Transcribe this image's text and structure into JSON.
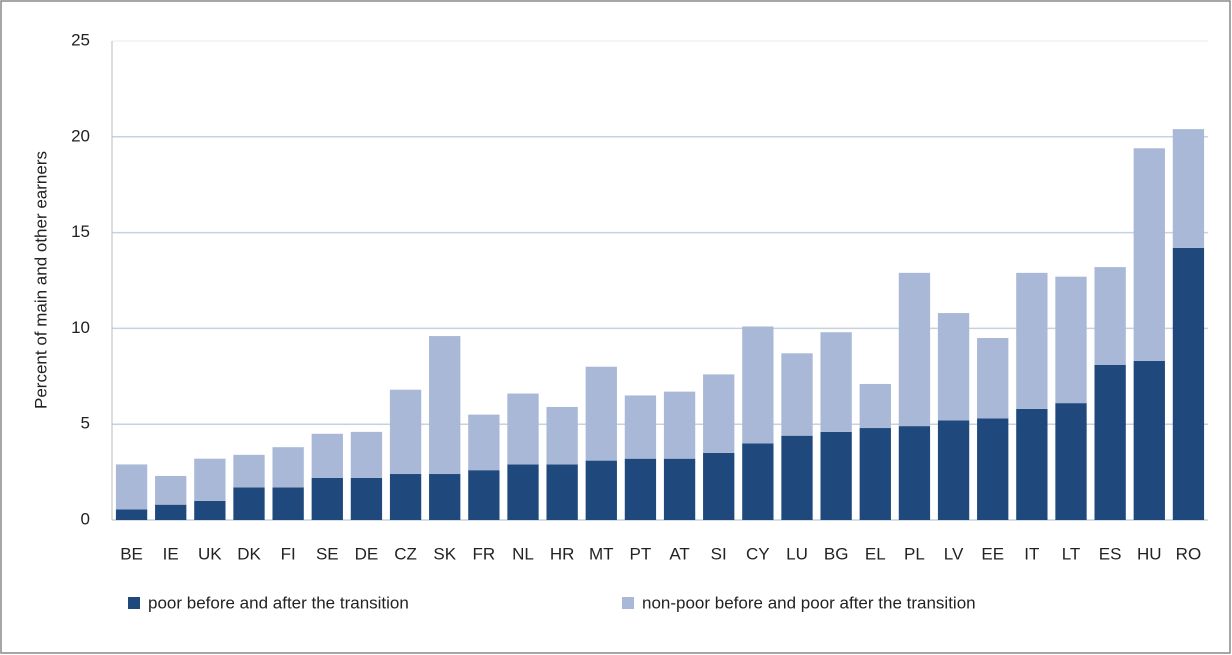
{
  "chart_data": {
    "type": "stacked_bar",
    "y_label": "Percent of main and other earners",
    "categories": [
      "BE",
      "IE",
      "UK",
      "DK",
      "FI",
      "SE",
      "DE",
      "CZ",
      "SK",
      "FR",
      "NL",
      "HR",
      "MT",
      "PT",
      "AT",
      "SI",
      "CY",
      "LU",
      "BG",
      "EL",
      "PL",
      "LV",
      "EE",
      "IT",
      "LT",
      "ES",
      "HU",
      "RO"
    ],
    "series": [
      {
        "name": "poor before and after the transition",
        "color": "#1f497d",
        "values": [
          0.55,
          0.8,
          1.0,
          1.7,
          1.7,
          2.2,
          2.2,
          2.4,
          2.4,
          2.6,
          2.9,
          2.9,
          3.1,
          3.2,
          3.2,
          3.5,
          4.0,
          4.4,
          4.6,
          4.8,
          4.9,
          5.2,
          5.3,
          5.8,
          6.1,
          8.1,
          8.3,
          14.2
        ]
      },
      {
        "name": "non-poor before and poor after the transition",
        "color": "#a9b8d6",
        "values": [
          2.35,
          1.5,
          2.2,
          1.7,
          2.1,
          2.3,
          2.4,
          4.4,
          7.2,
          2.9,
          3.7,
          3.0,
          4.9,
          3.3,
          3.5,
          4.1,
          6.1,
          4.3,
          5.2,
          2.3,
          8.0,
          5.6,
          4.2,
          7.1,
          6.6,
          5.1,
          11.1,
          6.2
        ]
      }
    ],
    "ylim": [
      0,
      25
    ],
    "yticks": [
      0,
      5,
      10,
      15,
      20,
      25
    ],
    "grid": true,
    "legend": "bottom"
  }
}
